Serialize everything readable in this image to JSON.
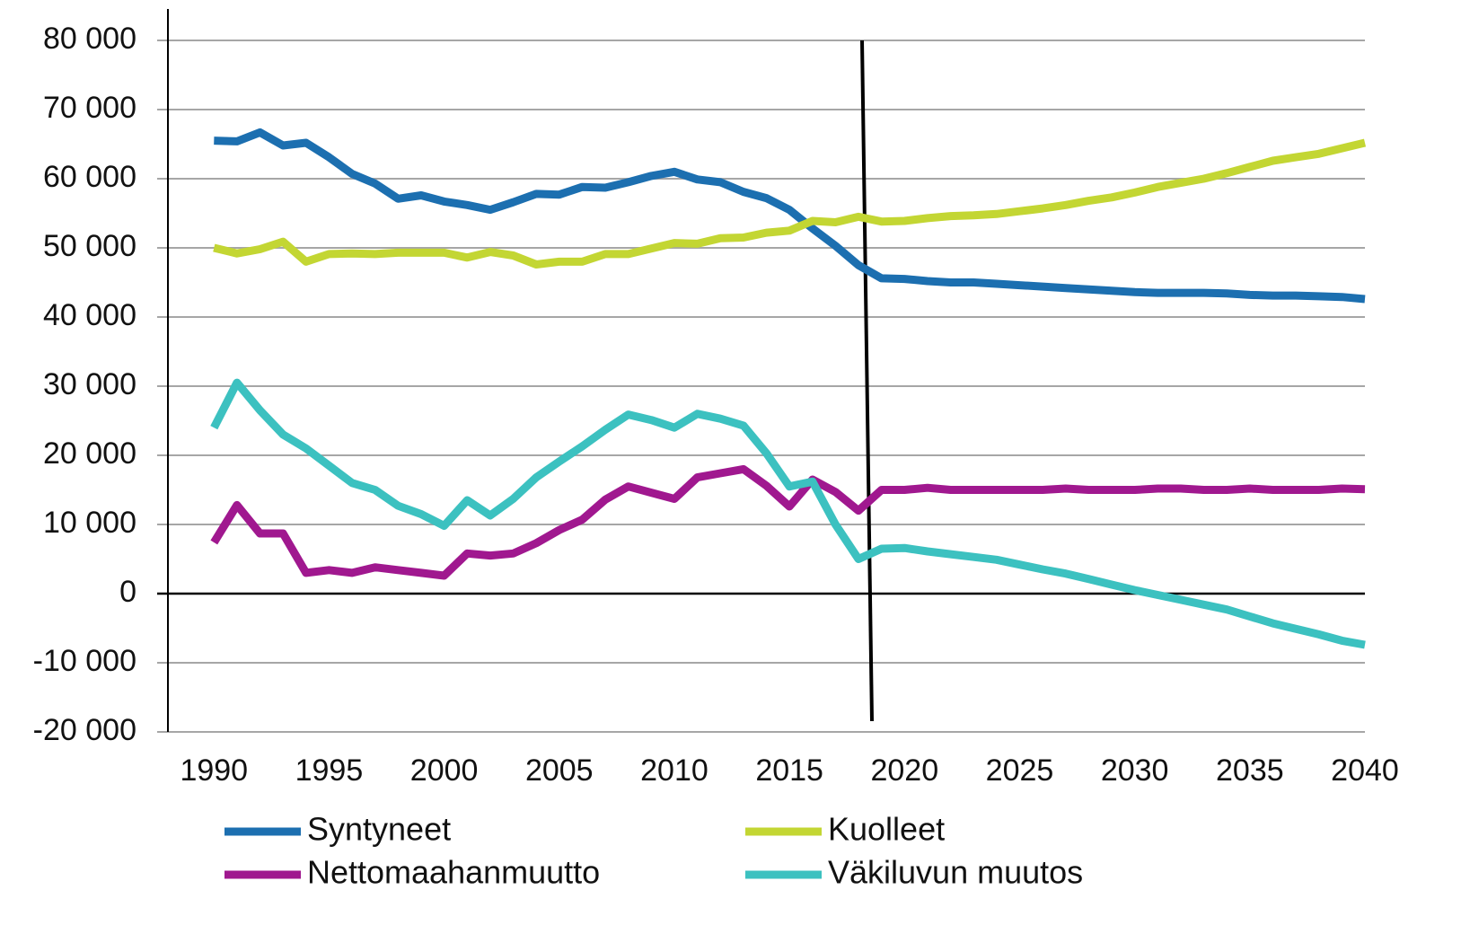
{
  "chart_data": {
    "type": "line",
    "x": [
      1990,
      1991,
      1992,
      1993,
      1994,
      1995,
      1996,
      1997,
      1998,
      1999,
      2000,
      2001,
      2002,
      2003,
      2004,
      2005,
      2006,
      2007,
      2008,
      2009,
      2010,
      2011,
      2012,
      2013,
      2014,
      2015,
      2016,
      2017,
      2018,
      2019,
      2020,
      2021,
      2022,
      2023,
      2024,
      2025,
      2026,
      2027,
      2028,
      2029,
      2030,
      2031,
      2032,
      2033,
      2034,
      2035,
      2036,
      2037,
      2038,
      2039,
      2040
    ],
    "xlim": [
      1988,
      2040
    ],
    "xticks": [
      1990,
      1995,
      2000,
      2005,
      2010,
      2015,
      2020,
      2025,
      2030,
      2035,
      2040
    ],
    "ylim": [
      -20000,
      80000
    ],
    "yticks": [
      {
        "value": -20000,
        "label": "-20 000"
      },
      {
        "value": -10000,
        "label": "-10 000"
      },
      0,
      {
        "value": 10000,
        "label": "10 000"
      },
      {
        "value": 20000,
        "label": "20 000"
      },
      {
        "value": 30000,
        "label": "30 000"
      },
      {
        "value": 40000,
        "label": "40 000"
      },
      {
        "value": 50000,
        "label": "50 000"
      },
      {
        "value": 60000,
        "label": "60 000"
      },
      {
        "value": 70000,
        "label": "70 000"
      },
      {
        "value": 80000,
        "label": "80 000"
      }
    ],
    "grid": true,
    "series": [
      {
        "name": "Syntyneet",
        "color": "#1c6fb0",
        "values": [
          65500,
          65400,
          66700,
          64800,
          65200,
          63100,
          60700,
          59300,
          57100,
          57600,
          56700,
          56200,
          55500,
          56600,
          57800,
          57700,
          58800,
          58700,
          59500,
          60400,
          61000,
          59900,
          59500,
          58100,
          57200,
          55500,
          52800,
          50300,
          47500,
          45600,
          45500,
          45200,
          45000,
          45000,
          44800,
          44600,
          44400,
          44200,
          44000,
          43800,
          43600,
          43500,
          43500,
          43500,
          43400,
          43200,
          43100,
          43100,
          43000,
          42900,
          42600
        ]
      },
      {
        "name": "Kuolleet",
        "color": "#c3d633",
        "values": [
          50000,
          49200,
          49800,
          50900,
          48000,
          49100,
          49200,
          49100,
          49300,
          49300,
          49300,
          48600,
          49400,
          48900,
          47600,
          48000,
          48000,
          49100,
          49100,
          49900,
          50700,
          50600,
          51400,
          51500,
          52200,
          52500,
          53900,
          53700,
          54500,
          53800,
          53900,
          54300,
          54600,
          54700,
          54900,
          55300,
          55700,
          56200,
          56800,
          57300,
          58000,
          58800,
          59400,
          60000,
          60800,
          61700,
          62600,
          63100,
          63600,
          64400,
          65200
        ]
      },
      {
        "name": "Nettomaahanmuutto",
        "color": "#a0188f",
        "values": [
          7400,
          12800,
          8700,
          8700,
          3000,
          3400,
          3000,
          3800,
          3400,
          3000,
          2600,
          5800,
          5500,
          5800,
          7300,
          9200,
          10700,
          13600,
          15500,
          14600,
          13700,
          16800,
          17400,
          18000,
          15600,
          12600,
          16500,
          14700,
          12000,
          15000,
          15000,
          15300,
          15000,
          15000,
          15000,
          15000,
          15000,
          15200,
          15000,
          15000,
          15000,
          15200,
          15200,
          15000,
          15000,
          15200,
          15000,
          15000,
          15000,
          15200,
          15100
        ]
      },
      {
        "name": "Väkiluvun muutos",
        "color": "#3cc1c0",
        "values": [
          24000,
          30500,
          26500,
          23000,
          21000,
          18500,
          16000,
          15000,
          12700,
          11500,
          9800,
          13500,
          11300,
          13700,
          16800,
          19100,
          21300,
          23700,
          25900,
          25100,
          24000,
          26000,
          25300,
          24300,
          20300,
          15500,
          16200,
          10000,
          5000,
          6500,
          6600,
          6100,
          5700,
          5300,
          4900,
          4200,
          3500,
          2900,
          2100,
          1300,
          500,
          -200,
          -900,
          -1600,
          -2300,
          -3300,
          -4300,
          -5100,
          -5900,
          -6800,
          -7400
        ]
      }
    ]
  }
}
